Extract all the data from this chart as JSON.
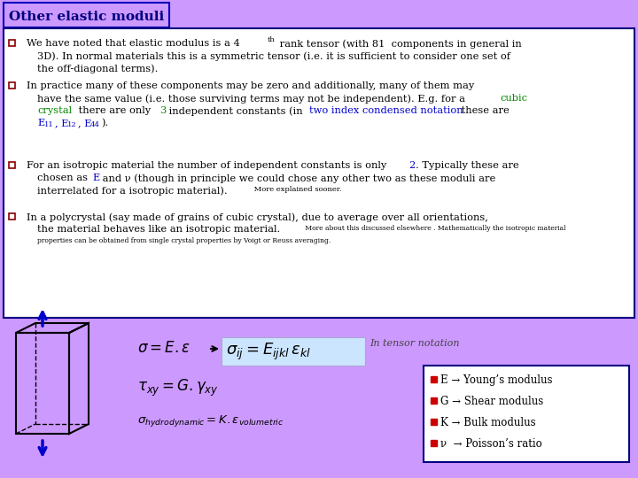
{
  "title": "Other elastic moduli",
  "bg_color": "#cc99ff",
  "title_border": "#0000bb",
  "title_text_color": "#000080",
  "box_bg": "#ffffff",
  "box_border": "#000080",
  "bullet_color": "#880000",
  "green_color": "#008800",
  "blue_color": "#0000cc",
  "legend_items": [
    "E → Young’s modulus",
    "G → Shear modulus",
    "K → Bulk modulus",
    "ν  → Poisson’s ratio"
  ],
  "legend_bullet_color": "#cc0000",
  "legend_bg": "#ffffff",
  "legend_border": "#000080",
  "formula_bg": "#cce5ff",
  "cube_arrow_color": "#0000cc"
}
